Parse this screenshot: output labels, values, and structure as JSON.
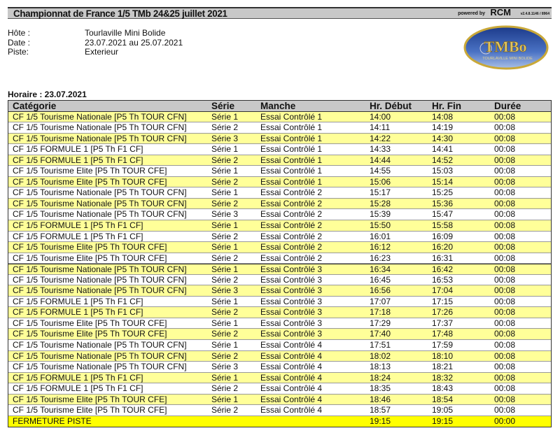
{
  "header": {
    "title": "Championnat de France 1/5 TMb 24&25 juillet 2021",
    "powered_by": "powered by",
    "brand": "RCM",
    "version": "v2.4.8.1146 / 8964"
  },
  "info": {
    "host_label": "Hôte :",
    "host_value": "Tourlaville Mini Bolide",
    "date_label": "Date :",
    "date_value": "23.07.2021 au 25.07.2021",
    "track_label": "Piste:",
    "track_value": "Exterieur"
  },
  "logo": {
    "text": "TMBo",
    "subtext": "TOURLAVILLE MINI BOLIDE",
    "colors": {
      "blue": "#2a4fa0",
      "gold": "#c9a838"
    }
  },
  "schedule": {
    "title": "Horaire : 23.07.2021",
    "columns": [
      "Catégorie",
      "Série",
      "Manche",
      "Hr. Début",
      "Hr. Fin",
      "Durée"
    ],
    "colors": {
      "header": "#c8c8c8",
      "alt_row": "#ffff99",
      "closing_row": "#ffff00"
    },
    "rows": [
      [
        "CF 1/5 Tourisme Nationale [P5 Th TOUR CFN]",
        "Série 1",
        "Essai Contrôlé 1",
        "14:00",
        "14:08",
        "00:08"
      ],
      [
        "CF 1/5 Tourisme Nationale [P5 Th TOUR CFN]",
        "Série 2",
        "Essai Contrôlé 1",
        "14:11",
        "14:19",
        "00:08"
      ],
      [
        "CF 1/5 Tourisme Nationale [P5 Th TOUR CFN]",
        "Série 3",
        "Essai Contrôlé 1",
        "14:22",
        "14:30",
        "00:08"
      ],
      [
        "CF 1/5 FORMULE 1 [P5 Th F1 CF]",
        "Série 1",
        "Essai Contrôlé 1",
        "14:33",
        "14:41",
        "00:08"
      ],
      [
        "CF 1/5 FORMULE 1 [P5 Th F1 CF]",
        "Série 2",
        "Essai Contrôlé 1",
        "14:44",
        "14:52",
        "00:08"
      ],
      [
        "CF 1/5 Tourisme Elite [P5 Th TOUR CFE]",
        "Série 1",
        "Essai Contrôlé 1",
        "14:55",
        "15:03",
        "00:08"
      ],
      [
        "CF 1/5 Tourisme Elite [P5 Th TOUR CFE]",
        "Série 2",
        "Essai Contrôlé 1",
        "15:06",
        "15:14",
        "00:08"
      ],
      [
        "CF 1/5 Tourisme Nationale [P5 Th TOUR CFN]",
        "Série 1",
        "Essai Contrôlé 2",
        "15:17",
        "15:25",
        "00:08"
      ],
      [
        "CF 1/5 Tourisme Nationale [P5 Th TOUR CFN]",
        "Série 2",
        "Essai Contrôlé 2",
        "15:28",
        "15:36",
        "00:08"
      ],
      [
        "CF 1/5 Tourisme Nationale [P5 Th TOUR CFN]",
        "Série 3",
        "Essai Contrôlé 2",
        "15:39",
        "15:47",
        "00:08"
      ],
      [
        "CF 1/5 FORMULE 1 [P5 Th F1 CF]",
        "Série 1",
        "Essai Contrôlé 2",
        "15:50",
        "15:58",
        "00:08"
      ],
      [
        "CF 1/5 FORMULE 1 [P5 Th F1 CF]",
        "Série 2",
        "Essai Contrôlé 2",
        "16:01",
        "16:09",
        "00:08"
      ],
      [
        "CF 1/5 Tourisme Elite [P5 Th TOUR CFE]",
        "Série 1",
        "Essai Contrôlé 2",
        "16:12",
        "16:20",
        "00:08"
      ],
      [
        "CF 1/5 Tourisme Elite [P5 Th TOUR CFE]",
        "Série 2",
        "Essai Contrôlé 2",
        "16:23",
        "16:31",
        "00:08"
      ],
      [
        "CF 1/5 Tourisme Nationale [P5 Th TOUR CFN]",
        "Série 1",
        "Essai Contrôlé 3",
        "16:34",
        "16:42",
        "00:08"
      ],
      [
        "CF 1/5 Tourisme Nationale [P5 Th TOUR CFN]",
        "Série 2",
        "Essai Contrôlé 3",
        "16:45",
        "16:53",
        "00:08"
      ],
      [
        "CF 1/5 Tourisme Nationale [P5 Th TOUR CFN]",
        "Série 3",
        "Essai Contrôlé 3",
        "16:56",
        "17:04",
        "00:08"
      ],
      [
        "CF 1/5 FORMULE 1 [P5 Th F1 CF]",
        "Série 1",
        "Essai Contrôlé 3",
        "17:07",
        "17:15",
        "00:08"
      ],
      [
        "CF 1/5 FORMULE 1 [P5 Th F1 CF]",
        "Série 2",
        "Essai Contrôlé 3",
        "17:18",
        "17:26",
        "00:08"
      ],
      [
        "CF 1/5 Tourisme Elite [P5 Th TOUR CFE]",
        "Série 1",
        "Essai Contrôlé 3",
        "17:29",
        "17:37",
        "00:08"
      ],
      [
        "CF 1/5 Tourisme Elite [P5 Th TOUR CFE]",
        "Série 2",
        "Essai Contrôlé 3",
        "17:40",
        "17:48",
        "00:08"
      ],
      [
        "CF 1/5 Tourisme Nationale [P5 Th TOUR CFN]",
        "Série 1",
        "Essai Contrôlé 4",
        "17:51",
        "17:59",
        "00:08"
      ],
      [
        "CF 1/5 Tourisme Nationale [P5 Th TOUR CFN]",
        "Série 2",
        "Essai Contrôlé 4",
        "18:02",
        "18:10",
        "00:08"
      ],
      [
        "CF 1/5 Tourisme Nationale [P5 Th TOUR CFN]",
        "Série 3",
        "Essai Contrôlé 4",
        "18:13",
        "18:21",
        "00:08"
      ],
      [
        "CF 1/5 FORMULE 1 [P5 Th F1 CF]",
        "Série 1",
        "Essai Contrôlé 4",
        "18:24",
        "18:32",
        "00:08"
      ],
      [
        "CF 1/5 FORMULE 1 [P5 Th F1 CF]",
        "Série 2",
        "Essai Contrôlé 4",
        "18:35",
        "18:43",
        "00:08"
      ],
      [
        "CF 1/5 Tourisme Elite [P5 Th TOUR CFE]",
        "Série 1",
        "Essai Contrôlé 4",
        "18:46",
        "18:54",
        "00:08"
      ],
      [
        "CF 1/5 Tourisme Elite [P5 Th TOUR CFE]",
        "Série 2",
        "Essai Contrôlé 4",
        "18:57",
        "19:05",
        "00:08"
      ]
    ],
    "closing": [
      "FERMETURE PISTE",
      "",
      "",
      "19:15",
      "19:15",
      "00:00"
    ]
  }
}
